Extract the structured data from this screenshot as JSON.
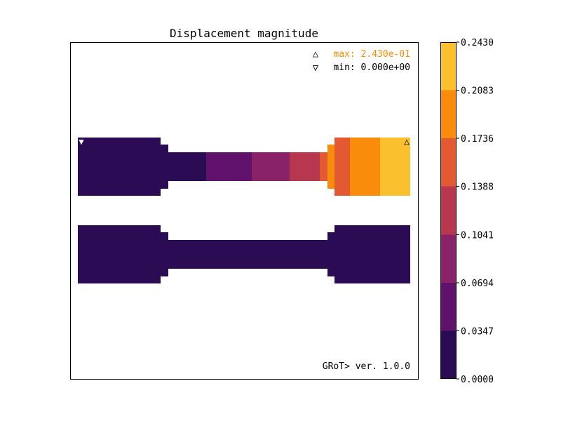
{
  "chart_data": {
    "type": "heatmap",
    "title": "Displacement magnitude",
    "annotations": {
      "max_label": "max: 2.430e-01",
      "min_label": "min: 0.000e+00",
      "max_color": "#ff8c00",
      "footer": "GRoT> ver. 1.0.0"
    },
    "colorbar": {
      "ticks": [
        "0.0000",
        "0.0347",
        "0.0694",
        "0.1041",
        "0.1388",
        "0.1736",
        "0.2083",
        "0.2430"
      ],
      "colors": [
        "#2a0b54",
        "#5f116c",
        "#8a226a",
        "#b7374f",
        "#e35932",
        "#f98c0a",
        "#fbc02d"
      ]
    },
    "bodies": [
      {
        "name": "deformed",
        "segment_levels": [
          0,
          0,
          0,
          1,
          2,
          3,
          4,
          5,
          6
        ]
      },
      {
        "name": "reference",
        "segment_levels": [
          0,
          0,
          0,
          0,
          0,
          0,
          0,
          0,
          0
        ]
      }
    ]
  }
}
